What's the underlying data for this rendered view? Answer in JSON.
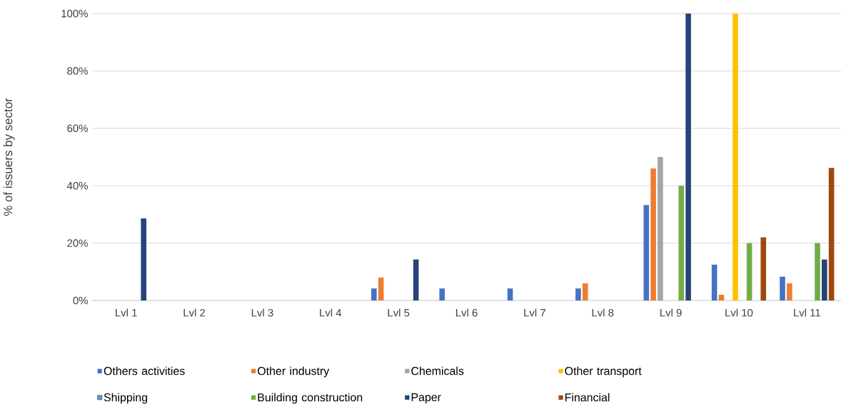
{
  "chart_data": {
    "type": "bar",
    "ylabel": "% of issuers by sector",
    "categories": [
      "Lvl 1",
      "Lvl 2",
      "Lvl 3",
      "Lvl 4",
      "Lvl 5",
      "Lvl 6",
      "Lvl 7",
      "Lvl 8",
      "Lvl 9",
      "Lvl 10",
      "Lvl 11"
    ],
    "series": [
      {
        "name": "Others activities",
        "color": "#4472c4",
        "values": [
          null,
          null,
          null,
          null,
          4.2,
          4.2,
          4.2,
          4.2,
          33.3,
          12.5,
          8.3
        ]
      },
      {
        "name": "Other industry",
        "color": "#ed7d31",
        "values": [
          null,
          null,
          null,
          null,
          8,
          null,
          null,
          6,
          46,
          2,
          6
        ]
      },
      {
        "name": "Chemicals",
        "color": "#a5a5a5",
        "values": [
          null,
          null,
          null,
          null,
          null,
          null,
          null,
          null,
          50,
          null,
          null
        ]
      },
      {
        "name": "Other transport",
        "color": "#ffc000",
        "values": [
          null,
          null,
          null,
          null,
          null,
          null,
          null,
          null,
          null,
          100,
          null
        ]
      },
      {
        "name": "Shipping",
        "color": "#5b9bd5",
        "values": [
          null,
          null,
          null,
          null,
          null,
          null,
          null,
          null,
          null,
          null,
          null
        ]
      },
      {
        "name": "Building construction",
        "color": "#70ad47",
        "values": [
          null,
          null,
          null,
          null,
          null,
          null,
          null,
          null,
          40,
          20,
          20
        ]
      },
      {
        "name": "Paper",
        "color": "#264478",
        "values": [
          28.6,
          null,
          null,
          null,
          14.3,
          null,
          null,
          null,
          100,
          null,
          14.3
        ]
      },
      {
        "name": "Financial",
        "color": "#9e480e",
        "values": [
          null,
          null,
          null,
          null,
          null,
          null,
          null,
          null,
          null,
          22,
          46.2
        ]
      }
    ],
    "ylim": [
      0,
      100
    ],
    "yticks": [
      {
        "value": 0,
        "label": "0%"
      },
      {
        "value": 20,
        "label": "20%"
      },
      {
        "value": 40,
        "label": "40%"
      },
      {
        "value": 60,
        "label": "60%"
      },
      {
        "value": 80,
        "label": "80%"
      },
      {
        "value": 100,
        "label": "100%"
      }
    ],
    "grid": "y",
    "legend": "bottom"
  }
}
